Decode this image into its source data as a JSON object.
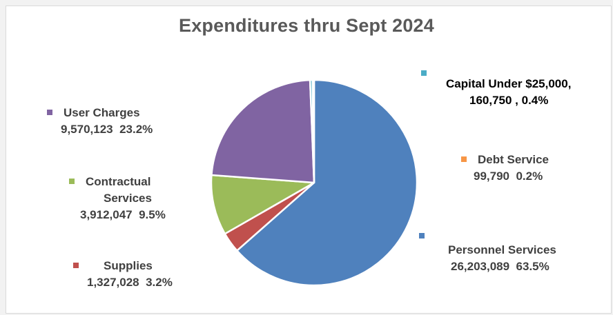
{
  "chart_data": {
    "type": "pie",
    "title": "Expenditures thru Sept 2024",
    "slices": [
      {
        "name": "Personnel Services",
        "value_text": "26,203,089",
        "percent_text": "63.5%",
        "value": 26203089,
        "percent": 63.5,
        "color": "#4f81bd"
      },
      {
        "name": "Supplies",
        "value_text": "1,327,028",
        "percent_text": "3.2%",
        "value": 1327028,
        "percent": 3.2,
        "color": "#c0504d"
      },
      {
        "name": "Contractual Services",
        "name_lines": [
          "Contractual",
          "Services"
        ],
        "value_text": "3,912,047",
        "percent_text": "9.5%",
        "value": 3912047,
        "percent": 9.5,
        "color": "#9bbb59"
      },
      {
        "name": "User Charges",
        "value_text": "9,570,123",
        "percent_text": "23.2%",
        "value": 9570123,
        "percent": 23.2,
        "color": "#8064a2"
      },
      {
        "name": "Capital Under $25,000",
        "name_text": "Capital Under $25,000,",
        "value_text": "160,750",
        "percent_text": "0.4%",
        "value": 160750,
        "percent": 0.4,
        "color": "#4bacc6"
      },
      {
        "name": "Debt Service",
        "value_text": "99,790",
        "percent_text": "0.2%",
        "value": 99790,
        "percent": 0.2,
        "color": "#f79646"
      }
    ]
  }
}
